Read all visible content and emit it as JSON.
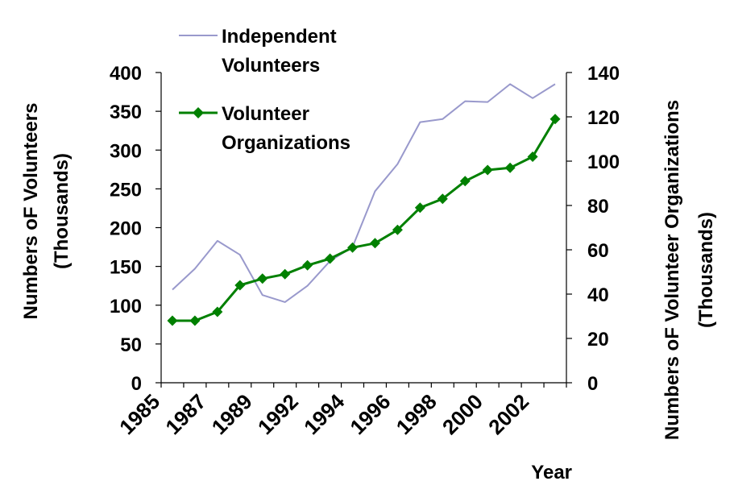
{
  "chart_data": {
    "type": "line",
    "xlabel": "Year",
    "ylabel_left": [
      "Numbers oF Volunteers",
      "(Thousands)"
    ],
    "ylabel_right": [
      "Numbers oF Volunteer Organizations",
      "(Thousands)"
    ],
    "x_tick_labels": [
      "1985",
      "1987",
      "1989",
      "1992",
      "1994",
      "1996",
      "1998",
      "2000",
      "2002"
    ],
    "ylim_left": [
      0,
      400
    ],
    "yticks_left": [
      0,
      50,
      100,
      150,
      200,
      250,
      300,
      350,
      400
    ],
    "ylim_right": [
      0,
      140
    ],
    "yticks_right": [
      0,
      20,
      40,
      60,
      80,
      100,
      120,
      140
    ],
    "grid": false,
    "legend_position": "top-left",
    "series": [
      {
        "name": "Independent Volunteers",
        "legend_lines": [
          "Independent",
          "Volunteers"
        ],
        "axis": "left",
        "color": "#9999cc",
        "marker": "none",
        "values": [
          120,
          147,
          183,
          165,
          113,
          104,
          125,
          157,
          175,
          247,
          282,
          336,
          340,
          363,
          362,
          385,
          367,
          385
        ]
      },
      {
        "name": "Volunteer Organizations",
        "legend_lines": [
          "Volunteer",
          "Organizations"
        ],
        "axis": "right",
        "color": "#008000",
        "marker": "diamond",
        "values": [
          28,
          28,
          32,
          44,
          47,
          49,
          53,
          56,
          61,
          63,
          69,
          79,
          83,
          91,
          96,
          97,
          102,
          119
        ]
      }
    ]
  }
}
